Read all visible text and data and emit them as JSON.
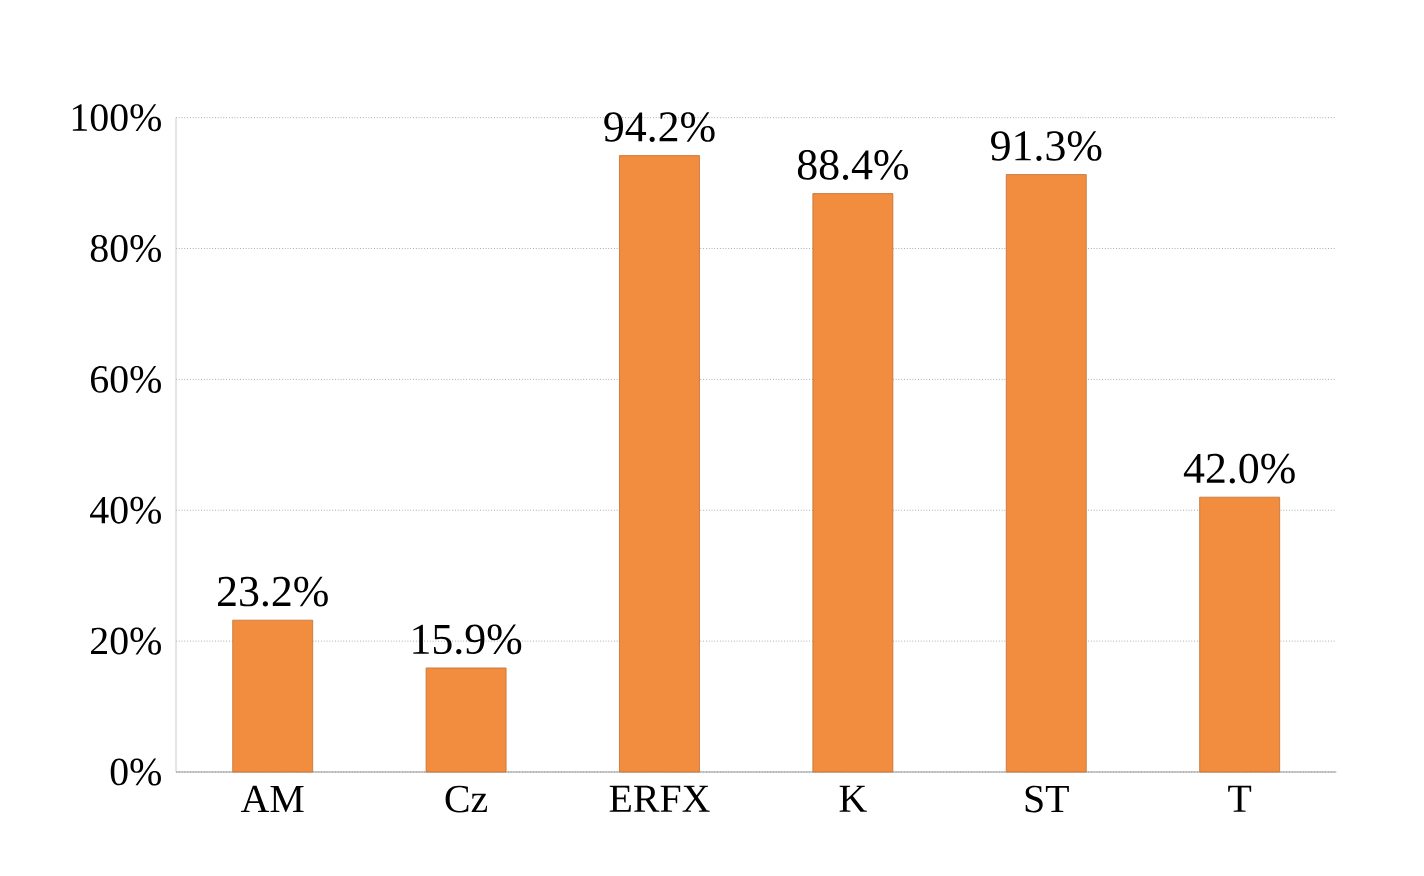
{
  "chart_data": {
    "type": "bar",
    "categories": [
      "AM",
      "Cz",
      "ERFX",
      "K",
      "ST",
      "T"
    ],
    "values": [
      23.2,
      15.9,
      94.2,
      88.4,
      91.3,
      42.0
    ],
    "value_labels": [
      "23.2%",
      "15.9%",
      "94.2%",
      "88.4%",
      "91.3%",
      "42.0%"
    ],
    "color": "#f28c3e",
    "ylim": [
      0,
      100
    ],
    "yticks": [
      {
        "value": 0,
        "label": "0%"
      },
      {
        "value": 20,
        "label": "20%"
      },
      {
        "value": 40,
        "label": "40%"
      },
      {
        "value": 60,
        "label": "60%"
      },
      {
        "value": 80,
        "label": "80%"
      },
      {
        "value": 100,
        "label": "100%"
      }
    ],
    "grid": "y"
  }
}
